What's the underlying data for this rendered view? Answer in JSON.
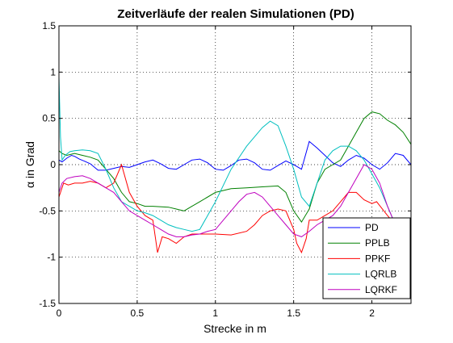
{
  "chart_data": {
    "type": "line",
    "title": "Zeitverläufe der realen Simulationen (PD)",
    "xlabel": "Strecke in m",
    "ylabel": "α in Grad",
    "xlim": [
      0,
      2.25
    ],
    "ylim": [
      -1.5,
      1.5
    ],
    "xticks": [
      0,
      0.5,
      1,
      1.5,
      2
    ],
    "xtick_labels": [
      "0",
      "0.5",
      "1",
      "1.5",
      "2"
    ],
    "yticks": [
      -1.5,
      -1,
      -0.5,
      0,
      0.5,
      1,
      1.5
    ],
    "ytick_labels": [
      "-1.5",
      "-1",
      "-0.5",
      "0",
      "0.5",
      "1",
      "1.5"
    ],
    "grid": true,
    "legend_position": "bottom-right",
    "series": [
      {
        "name": "PD",
        "color": "#0000ff",
        "x": [
          0,
          0.02,
          0.05,
          0.08,
          0.1,
          0.13,
          0.16,
          0.2,
          0.25,
          0.3,
          0.35,
          0.4,
          0.45,
          0.5,
          0.55,
          0.6,
          0.65,
          0.7,
          0.75,
          0.8,
          0.85,
          0.9,
          0.95,
          1.0,
          1.05,
          1.1,
          1.15,
          1.2,
          1.25,
          1.3,
          1.35,
          1.4,
          1.45,
          1.5,
          1.55,
          1.6,
          1.65,
          1.7,
          1.75,
          1.8,
          1.85,
          1.9,
          1.95,
          2.0,
          2.05,
          2.1,
          2.15,
          2.2,
          2.25
        ],
        "y": [
          0.05,
          0.03,
          0.07,
          0.1,
          0.09,
          0.06,
          0.04,
          0.01,
          -0.06,
          -0.06,
          -0.04,
          -0.02,
          -0.03,
          0.0,
          0.03,
          0.05,
          0.01,
          -0.04,
          -0.05,
          0.0,
          0.05,
          0.06,
          0.02,
          -0.05,
          -0.06,
          -0.01,
          0.05,
          0.06,
          0.02,
          -0.05,
          -0.06,
          -0.01,
          0.04,
          0.0,
          -0.05,
          0.25,
          0.18,
          0.1,
          0.02,
          -0.02,
          0.05,
          0.1,
          0.07,
          0.0,
          -0.05,
          0.02,
          0.12,
          0.1,
          0.0
        ]
      },
      {
        "name": "PPLB",
        "color": "#008000",
        "x": [
          0,
          0.02,
          0.05,
          0.1,
          0.15,
          0.2,
          0.25,
          0.3,
          0.35,
          0.4,
          0.45,
          0.5,
          0.55,
          0.6,
          0.7,
          0.75,
          0.8,
          0.85,
          0.9,
          1.0,
          1.1,
          1.2,
          1.3,
          1.4,
          1.45,
          1.5,
          1.55,
          1.6,
          1.65,
          1.7,
          1.75,
          1.8,
          1.85,
          1.9,
          1.95,
          2.0,
          2.05,
          2.1,
          2.15,
          2.2,
          2.25
        ],
        "y": [
          0.15,
          0.12,
          0.1,
          0.12,
          0.1,
          0.08,
          0.05,
          -0.05,
          -0.15,
          -0.3,
          -0.4,
          -0.42,
          -0.45,
          -0.45,
          -0.46,
          -0.48,
          -0.5,
          -0.45,
          -0.4,
          -0.3,
          -0.26,
          -0.25,
          -0.24,
          -0.23,
          -0.3,
          -0.5,
          -0.62,
          -0.48,
          -0.2,
          -0.05,
          0.0,
          0.05,
          0.2,
          0.35,
          0.5,
          0.57,
          0.55,
          0.48,
          0.43,
          0.35,
          0.22
        ]
      },
      {
        "name": "PPKF",
        "color": "#ff0000",
        "x": [
          0,
          0.03,
          0.06,
          0.1,
          0.15,
          0.2,
          0.25,
          0.3,
          0.35,
          0.4,
          0.45,
          0.5,
          0.55,
          0.6,
          0.63,
          0.66,
          0.7,
          0.75,
          0.8,
          0.85,
          0.9,
          0.95,
          1.0,
          1.1,
          1.2,
          1.25,
          1.3,
          1.35,
          1.4,
          1.45,
          1.5,
          1.52,
          1.55,
          1.58,
          1.6,
          1.65,
          1.7,
          1.75,
          1.8,
          1.85,
          1.9,
          1.95,
          2.0,
          2.03,
          2.1,
          2.15,
          2.2,
          2.25
        ],
        "y": [
          -0.35,
          -0.2,
          -0.22,
          -0.2,
          -0.2,
          -0.18,
          -0.2,
          -0.25,
          -0.2,
          0.0,
          -0.3,
          -0.45,
          -0.55,
          -0.6,
          -0.95,
          -0.78,
          -0.8,
          -0.85,
          -0.78,
          -0.75,
          -0.75,
          -0.75,
          -0.75,
          -0.76,
          -0.72,
          -0.65,
          -0.55,
          -0.5,
          -0.48,
          -0.5,
          -0.7,
          -0.85,
          -0.95,
          -0.8,
          -0.6,
          -0.6,
          -0.55,
          -0.5,
          -0.4,
          -0.3,
          -0.3,
          -0.38,
          -0.42,
          -0.4,
          -0.55,
          -0.65,
          -0.7,
          -0.7
        ]
      },
      {
        "name": "LQRLB",
        "color": "#00bfbf",
        "x": [
          0,
          0.01,
          0.02,
          0.04,
          0.07,
          0.1,
          0.15,
          0.2,
          0.25,
          0.3,
          0.35,
          0.4,
          0.45,
          0.5,
          0.55,
          0.6,
          0.65,
          0.7,
          0.75,
          0.8,
          0.85,
          0.9,
          0.95,
          1.0,
          1.1,
          1.2,
          1.3,
          1.35,
          1.4,
          1.45,
          1.5,
          1.55,
          1.6,
          1.65,
          1.7,
          1.75,
          1.8,
          1.85,
          1.9,
          1.95,
          2.0,
          2.05,
          2.1,
          2.15,
          2.2,
          2.25
        ],
        "y": [
          0.95,
          0.3,
          0.05,
          0.1,
          0.14,
          0.15,
          0.16,
          0.15,
          0.12,
          -0.05,
          -0.25,
          -0.4,
          -0.45,
          -0.5,
          -0.52,
          -0.55,
          -0.6,
          -0.65,
          -0.68,
          -0.7,
          -0.72,
          -0.7,
          -0.55,
          -0.4,
          -0.05,
          0.2,
          0.4,
          0.47,
          0.42,
          0.2,
          -0.05,
          -0.35,
          -0.45,
          -0.2,
          0.05,
          0.15,
          0.2,
          0.2,
          0.15,
          0.05,
          -0.1,
          -0.25,
          -0.45,
          -0.65,
          -0.8,
          -0.9
        ]
      },
      {
        "name": "LQRKF",
        "color": "#bf00bf",
        "x": [
          0,
          0.02,
          0.05,
          0.1,
          0.15,
          0.2,
          0.25,
          0.3,
          0.35,
          0.4,
          0.45,
          0.5,
          0.55,
          0.6,
          0.65,
          0.7,
          0.75,
          0.8,
          0.85,
          0.9,
          0.95,
          1.0,
          1.05,
          1.1,
          1.15,
          1.2,
          1.25,
          1.3,
          1.35,
          1.4,
          1.45,
          1.5,
          1.55,
          1.6,
          1.65,
          1.7,
          1.75,
          1.8,
          1.85,
          1.9,
          1.95,
          2.0,
          2.05,
          2.1,
          2.15,
          2.2,
          2.25
        ],
        "y": [
          -0.3,
          -0.2,
          -0.15,
          -0.13,
          -0.12,
          -0.15,
          -0.2,
          -0.25,
          -0.3,
          -0.4,
          -0.5,
          -0.55,
          -0.6,
          -0.65,
          -0.7,
          -0.75,
          -0.78,
          -0.78,
          -0.76,
          -0.75,
          -0.72,
          -0.7,
          -0.6,
          -0.5,
          -0.4,
          -0.32,
          -0.3,
          -0.35,
          -0.45,
          -0.55,
          -0.65,
          -0.75,
          -0.78,
          -0.72,
          -0.65,
          -0.6,
          -0.55,
          -0.45,
          -0.3,
          -0.15,
          0.0,
          -0.05,
          -0.2,
          -0.45,
          -0.65,
          -0.8,
          -0.88
        ]
      }
    ]
  }
}
